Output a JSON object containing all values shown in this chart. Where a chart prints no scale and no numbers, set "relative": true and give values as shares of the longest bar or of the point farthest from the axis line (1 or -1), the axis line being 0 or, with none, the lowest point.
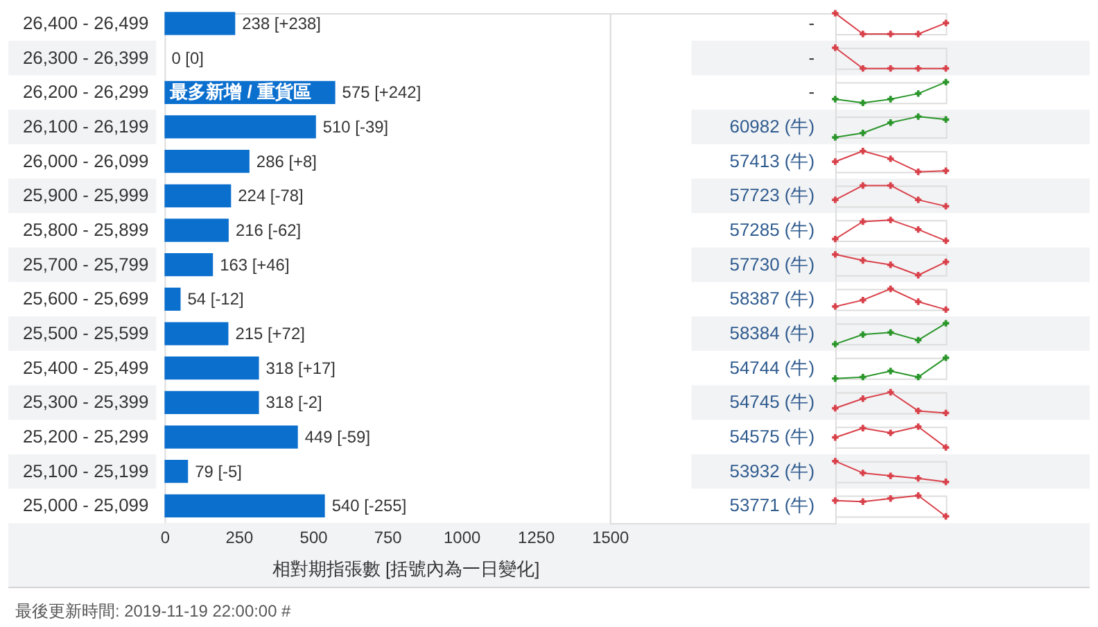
{
  "chart_data": [
    {
      "type": "bar",
      "orientation": "horizontal",
      "categories": [
        "26,400 - 26,499",
        "26,300 - 26,399",
        "26,200 - 26,299",
        "26,100 - 26,199",
        "26,000 - 26,099",
        "25,900 - 25,999",
        "25,800 - 25,899",
        "25,700 - 25,799",
        "25,600 - 25,699",
        "25,500 - 25,599",
        "25,400 - 25,499",
        "25,300 - 25,399",
        "25,200 - 25,299",
        "25,100 - 25,199",
        "25,000 - 25,099"
      ],
      "values": [
        238,
        0,
        575,
        510,
        286,
        224,
        216,
        163,
        54,
        215,
        318,
        318,
        449,
        79,
        540
      ],
      "value_labels": [
        "238 [+238]",
        "0 [0]",
        "575 [+242]",
        "510 [-39]",
        "286 [+8]",
        "224 [-78]",
        "216 [-62]",
        "163 [+46]",
        "54 [-12]",
        "215 [+72]",
        "318 [+17]",
        "318 [-2]",
        "449 [-59]",
        "79 [-5]",
        "540 [-255]"
      ],
      "color": "#0b6fce",
      "xlim": [
        0,
        1500
      ],
      "xticks": [
        0,
        250,
        500,
        750,
        1000,
        1250,
        1500
      ],
      "xlabel": "相對期指張數 [括號內為一日變化]",
      "annotations": [
        {
          "text": "最多新增 / 重貨區",
          "x": 0,
          "y": "26,200 - 26,299"
        },
        "最後更新時間: 2019-11-19 22:00:00 #"
      ]
    },
    {
      "type": "other",
      "annotations": [
        "-",
        "-",
        "-",
        "60982 (牛)",
        "57413 (牛)",
        "57723 (牛)",
        "57285 (牛)",
        "57730 (牛)",
        "58387 (牛)",
        "58384 (牛)",
        "54744 (牛)",
        "54745 (牛)",
        "54575 (牛)",
        "53932 (牛)",
        "53771 (牛)"
      ],
      "colors": [
        "#333333",
        "#333333",
        "#333333",
        "#2f5b8e",
        "#2f5b8e",
        "#2f5b8e",
        "#2f5b8e",
        "#2f5b8e",
        "#2f5b8e",
        "#2f5b8e",
        "#2f5b8e",
        "#2f5b8e",
        "#2f5b8e",
        "#2f5b8e",
        "#2f5b8e"
      ]
    },
    {
      "type": "line",
      "relative": true,
      "categories": [
        null,
        null,
        null,
        null,
        null
      ],
      "marker": "cross",
      "series": [
        {
          "color": "#d9414a",
          "values": [
            1,
            0,
            0,
            0,
            0.53
          ]
        }
      ]
    },
    {
      "type": "line",
      "relative": true,
      "categories": [
        null,
        null,
        null,
        null,
        null
      ],
      "marker": "cross",
      "series": [
        {
          "color": "#d9414a",
          "values": [
            1,
            0,
            0,
            0,
            0
          ]
        }
      ]
    },
    {
      "type": "line",
      "relative": true,
      "categories": [
        null,
        null,
        null,
        null,
        null
      ],
      "marker": "cross",
      "series": [
        {
          "color": "#2a962a",
          "values": [
            0.18,
            0,
            0.18,
            0.45,
            1
          ]
        }
      ]
    },
    {
      "type": "line",
      "relative": true,
      "categories": [
        null,
        null,
        null,
        null,
        null
      ],
      "marker": "cross",
      "series": [
        {
          "color": "#2a962a",
          "values": [
            0,
            0.21,
            0.71,
            1,
            0.86
          ]
        }
      ]
    },
    {
      "type": "line",
      "relative": true,
      "categories": [
        null,
        null,
        null,
        null,
        null
      ],
      "marker": "cross",
      "series": [
        {
          "color": "#d9414a",
          "values": [
            0.49,
            1,
            0.63,
            0,
            0.05
          ]
        }
      ]
    },
    {
      "type": "line",
      "relative": true,
      "categories": [
        null,
        null,
        null,
        null,
        null
      ],
      "marker": "cross",
      "series": [
        {
          "color": "#d9414a",
          "values": [
            0.31,
            1,
            1,
            0.31,
            0
          ]
        }
      ]
    },
    {
      "type": "line",
      "relative": true,
      "categories": [
        null,
        null,
        null,
        null,
        null
      ],
      "marker": "cross",
      "series": [
        {
          "color": "#d9414a",
          "values": [
            0.08,
            0.92,
            1,
            0.54,
            0
          ]
        }
      ]
    },
    {
      "type": "line",
      "relative": true,
      "categories": [
        null,
        null,
        null,
        null,
        null
      ],
      "marker": "cross",
      "series": [
        {
          "color": "#d9414a",
          "values": [
            1,
            0.71,
            0.5,
            0,
            0.64
          ]
        }
      ]
    },
    {
      "type": "line",
      "relative": true,
      "categories": [
        null,
        null,
        null,
        null,
        null
      ],
      "marker": "cross",
      "series": [
        {
          "color": "#d9414a",
          "values": [
            0.15,
            0.46,
            1,
            0.38,
            0
          ]
        }
      ]
    },
    {
      "type": "line",
      "relative": true,
      "categories": [
        null,
        null,
        null,
        null,
        null
      ],
      "marker": "cross",
      "series": [
        {
          "color": "#2a962a",
          "values": [
            0,
            0.46,
            0.56,
            0.19,
            1
          ]
        }
      ]
    },
    {
      "type": "line",
      "relative": true,
      "categories": [
        null,
        null,
        null,
        null,
        null
      ],
      "marker": "cross",
      "series": [
        {
          "color": "#2a962a",
          "values": [
            0,
            0.07,
            0.36,
            0.07,
            1
          ]
        }
      ]
    },
    {
      "type": "line",
      "relative": true,
      "categories": [
        null,
        null,
        null,
        null,
        null
      ],
      "marker": "cross",
      "series": [
        {
          "color": "#d9414a",
          "values": [
            0.23,
            0.69,
            1,
            0.1,
            0
          ]
        }
      ]
    },
    {
      "type": "line",
      "relative": true,
      "categories": [
        null,
        null,
        null,
        null,
        null
      ],
      "marker": "cross",
      "series": [
        {
          "color": "#d9414a",
          "values": [
            0.48,
            0.93,
            0.7,
            1,
            0
          ]
        }
      ]
    },
    {
      "type": "line",
      "relative": true,
      "categories": [
        null,
        null,
        null,
        null,
        null
      ],
      "marker": "cross",
      "series": [
        {
          "color": "#d9414a",
          "values": [
            1,
            0.43,
            0.29,
            0.17,
            0
          ]
        }
      ]
    },
    {
      "type": "line",
      "relative": true,
      "categories": [
        null,
        null,
        null,
        null,
        null
      ],
      "marker": "cross",
      "series": [
        {
          "color": "#d9414a",
          "values": [
            0.76,
            0.71,
            0.86,
            1,
            0
          ]
        }
      ]
    }
  ]
}
